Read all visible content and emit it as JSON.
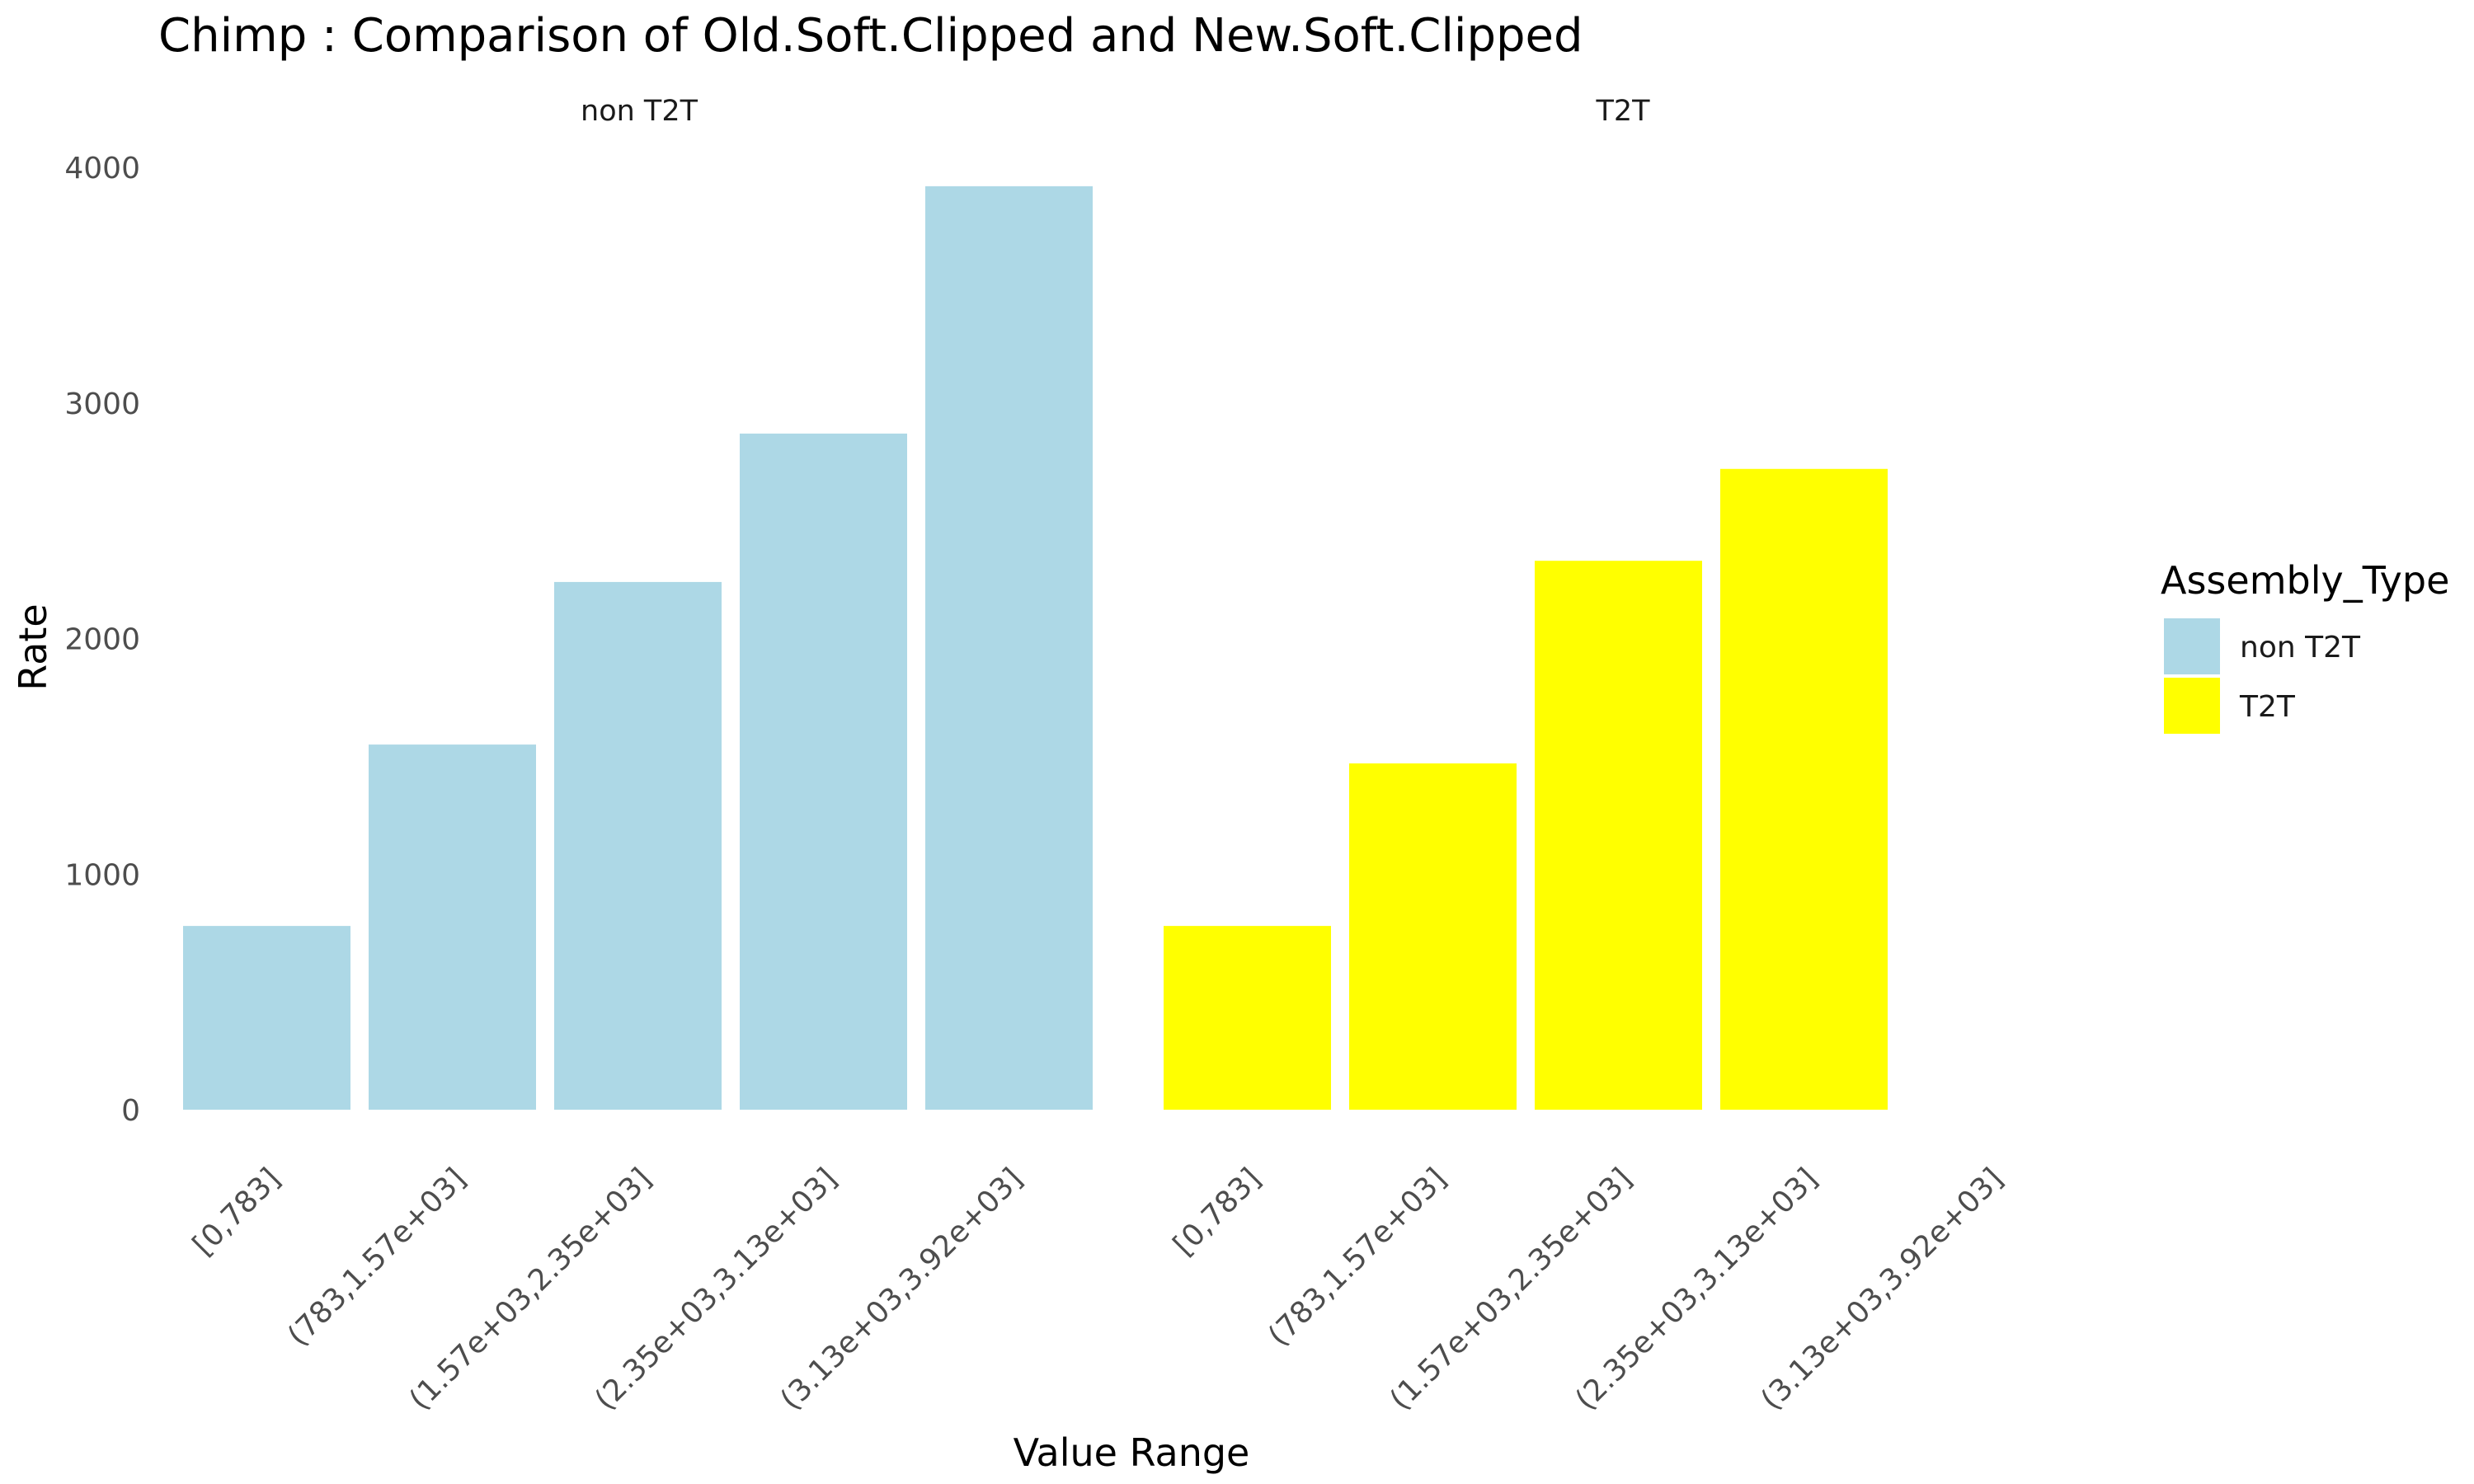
{
  "chart_data": {
    "type": "bar",
    "title": "Chimp : Comparison of Old.Soft.Clipped and New.Soft.Clipped",
    "xlabel": "Value Range",
    "ylabel": "Rate",
    "ylim": [
      0,
      4000
    ],
    "yticks": [
      "0",
      "1000",
      "2000",
      "3000",
      "4000"
    ],
    "grid": false,
    "categories": [
      "[0,783]",
      "(783,1.57e+03]",
      "(1.57e+03,2.35e+03]",
      "(2.35e+03,3.13e+03]",
      "(3.13e+03,3.92e+03]"
    ],
    "legend": {
      "title": "Assembly_Type",
      "position": "right",
      "entries": [
        {
          "label": "non T2T",
          "color": "#ADD8E6"
        },
        {
          "label": "T2T",
          "color": "#FFFF00"
        }
      ]
    },
    "facets": [
      {
        "label": "non T2T",
        "color": "#ADD8E6",
        "values": [
          780,
          1550,
          2240,
          2870,
          3920
        ]
      },
      {
        "label": "T2T",
        "color": "#FFFF00",
        "values": [
          780,
          1470,
          2330,
          2720,
          null
        ]
      }
    ]
  }
}
